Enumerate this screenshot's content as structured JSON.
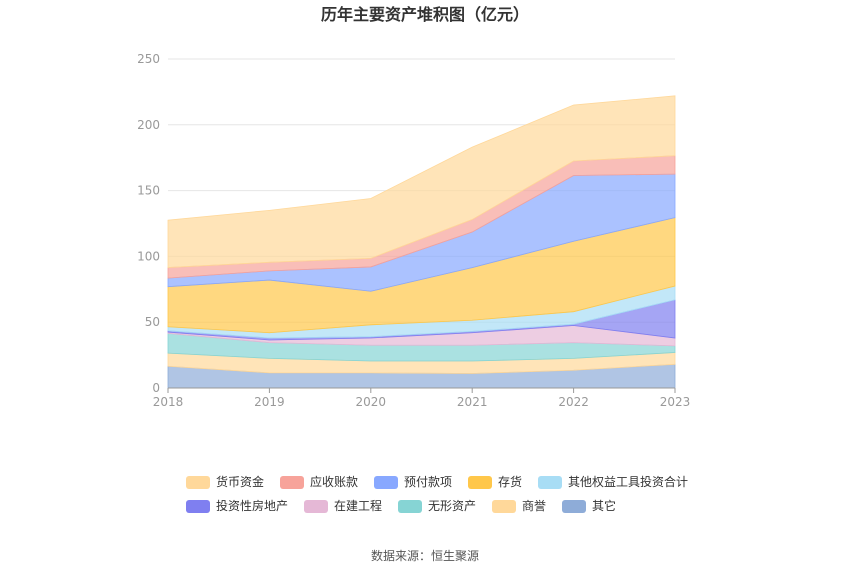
{
  "chart_data": {
    "type": "area",
    "stacked": true,
    "title": "历年主要资产堆积图（亿元）",
    "source": "数据来源：恒生聚源",
    "x": [
      "2018",
      "2019",
      "2020",
      "2021",
      "2022",
      "2023"
    ],
    "ylim": [
      0,
      250
    ],
    "yticks": [
      0,
      50,
      100,
      150,
      200,
      250
    ],
    "grid": true,
    "legend_position": "bottom",
    "series": [
      {
        "name": "其它",
        "color": "#8EACD8",
        "values": [
          16.5,
          11.5,
          11.5,
          11.0,
          13.5,
          18.0
        ]
      },
      {
        "name": "商誉",
        "color": "#FFD89A",
        "values": [
          10.0,
          11.0,
          9.0,
          9.5,
          9.0,
          9.0
        ]
      },
      {
        "name": "无形资产",
        "color": "#86D4D4",
        "values": [
          15.0,
          12.0,
          12.0,
          12.0,
          12.0,
          5.0
        ]
      },
      {
        "name": "在建工程",
        "color": "#E5B8D6",
        "values": [
          1.0,
          2.0,
          5.5,
          9.5,
          13.0,
          6.0
        ]
      },
      {
        "name": "投资性房地产",
        "color": "#7F7FF0",
        "values": [
          1.0,
          1.5,
          1.0,
          1.0,
          1.0,
          29.0
        ]
      },
      {
        "name": "其他权益工具投资合计",
        "color": "#A8DDF5",
        "values": [
          3.0,
          4.0,
          9.0,
          8.5,
          9.5,
          10.5
        ]
      },
      {
        "name": "存货",
        "color": "#FFC74A",
        "values": [
          30.5,
          40.0,
          25.5,
          40.0,
          53.5,
          52.0
        ]
      },
      {
        "name": "预付款项",
        "color": "#88A8FF",
        "values": [
          6.5,
          7.0,
          18.5,
          27.0,
          50.0,
          33.0
        ]
      },
      {
        "name": "应收账款",
        "color": "#F7A39A",
        "values": [
          8.0,
          6.5,
          6.5,
          9.5,
          11.0,
          14.0
        ]
      },
      {
        "name": "货币资金",
        "color": "#FFD89A",
        "values": [
          36.0,
          39.5,
          45.5,
          55.0,
          42.5,
          45.5
        ]
      }
    ],
    "legend_order": [
      "货币资金",
      "应收账款",
      "预付款项",
      "存货",
      "其他权益工具投资合计",
      "投资性房地产",
      "在建工程",
      "无形资产",
      "商誉",
      "其它"
    ]
  }
}
